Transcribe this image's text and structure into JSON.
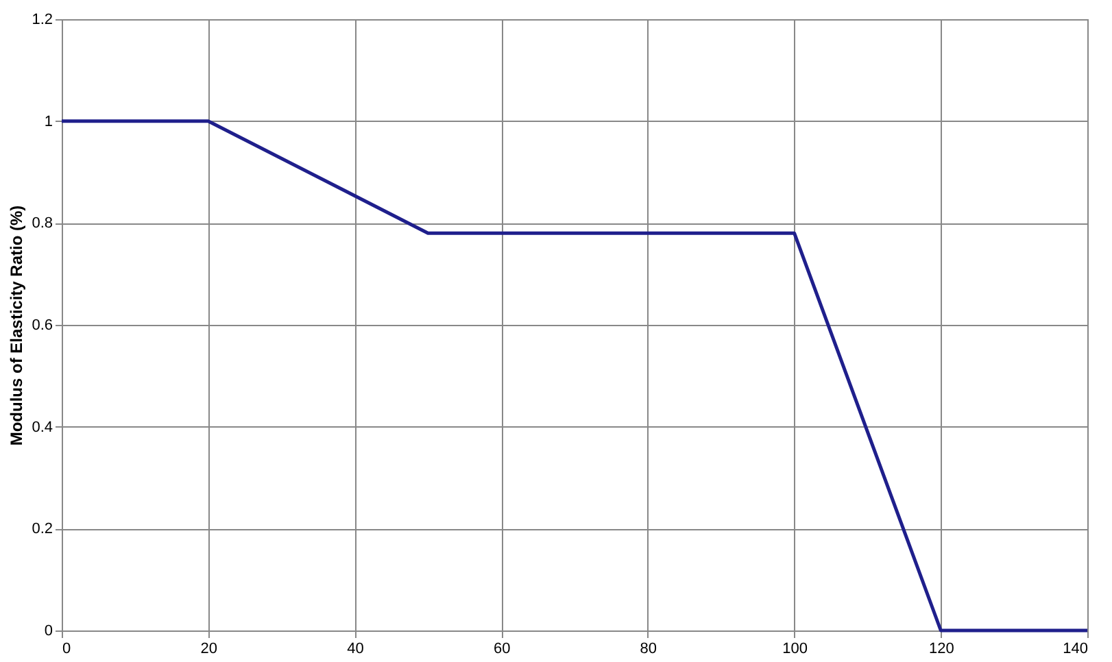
{
  "chart_data": {
    "type": "line",
    "ylabel": "Modulus of Elasticity Ratio (%)",
    "x": [
      0,
      20,
      50,
      100,
      120,
      140
    ],
    "series": [
      {
        "color": "#1f1f8c",
        "values": [
          1,
          1,
          0.78,
          0.78,
          0,
          0
        ]
      }
    ],
    "xlim": [
      0,
      140
    ],
    "xticks": [
      0,
      20,
      40,
      60,
      80,
      100,
      120,
      140
    ],
    "ylim": [
      0,
      1.2
    ],
    "yticks": [
      0,
      0.2,
      0.4,
      0.6,
      0.8,
      1,
      1.2
    ],
    "grid": true,
    "legend": false,
    "marker": "none",
    "line_style": "solid"
  }
}
